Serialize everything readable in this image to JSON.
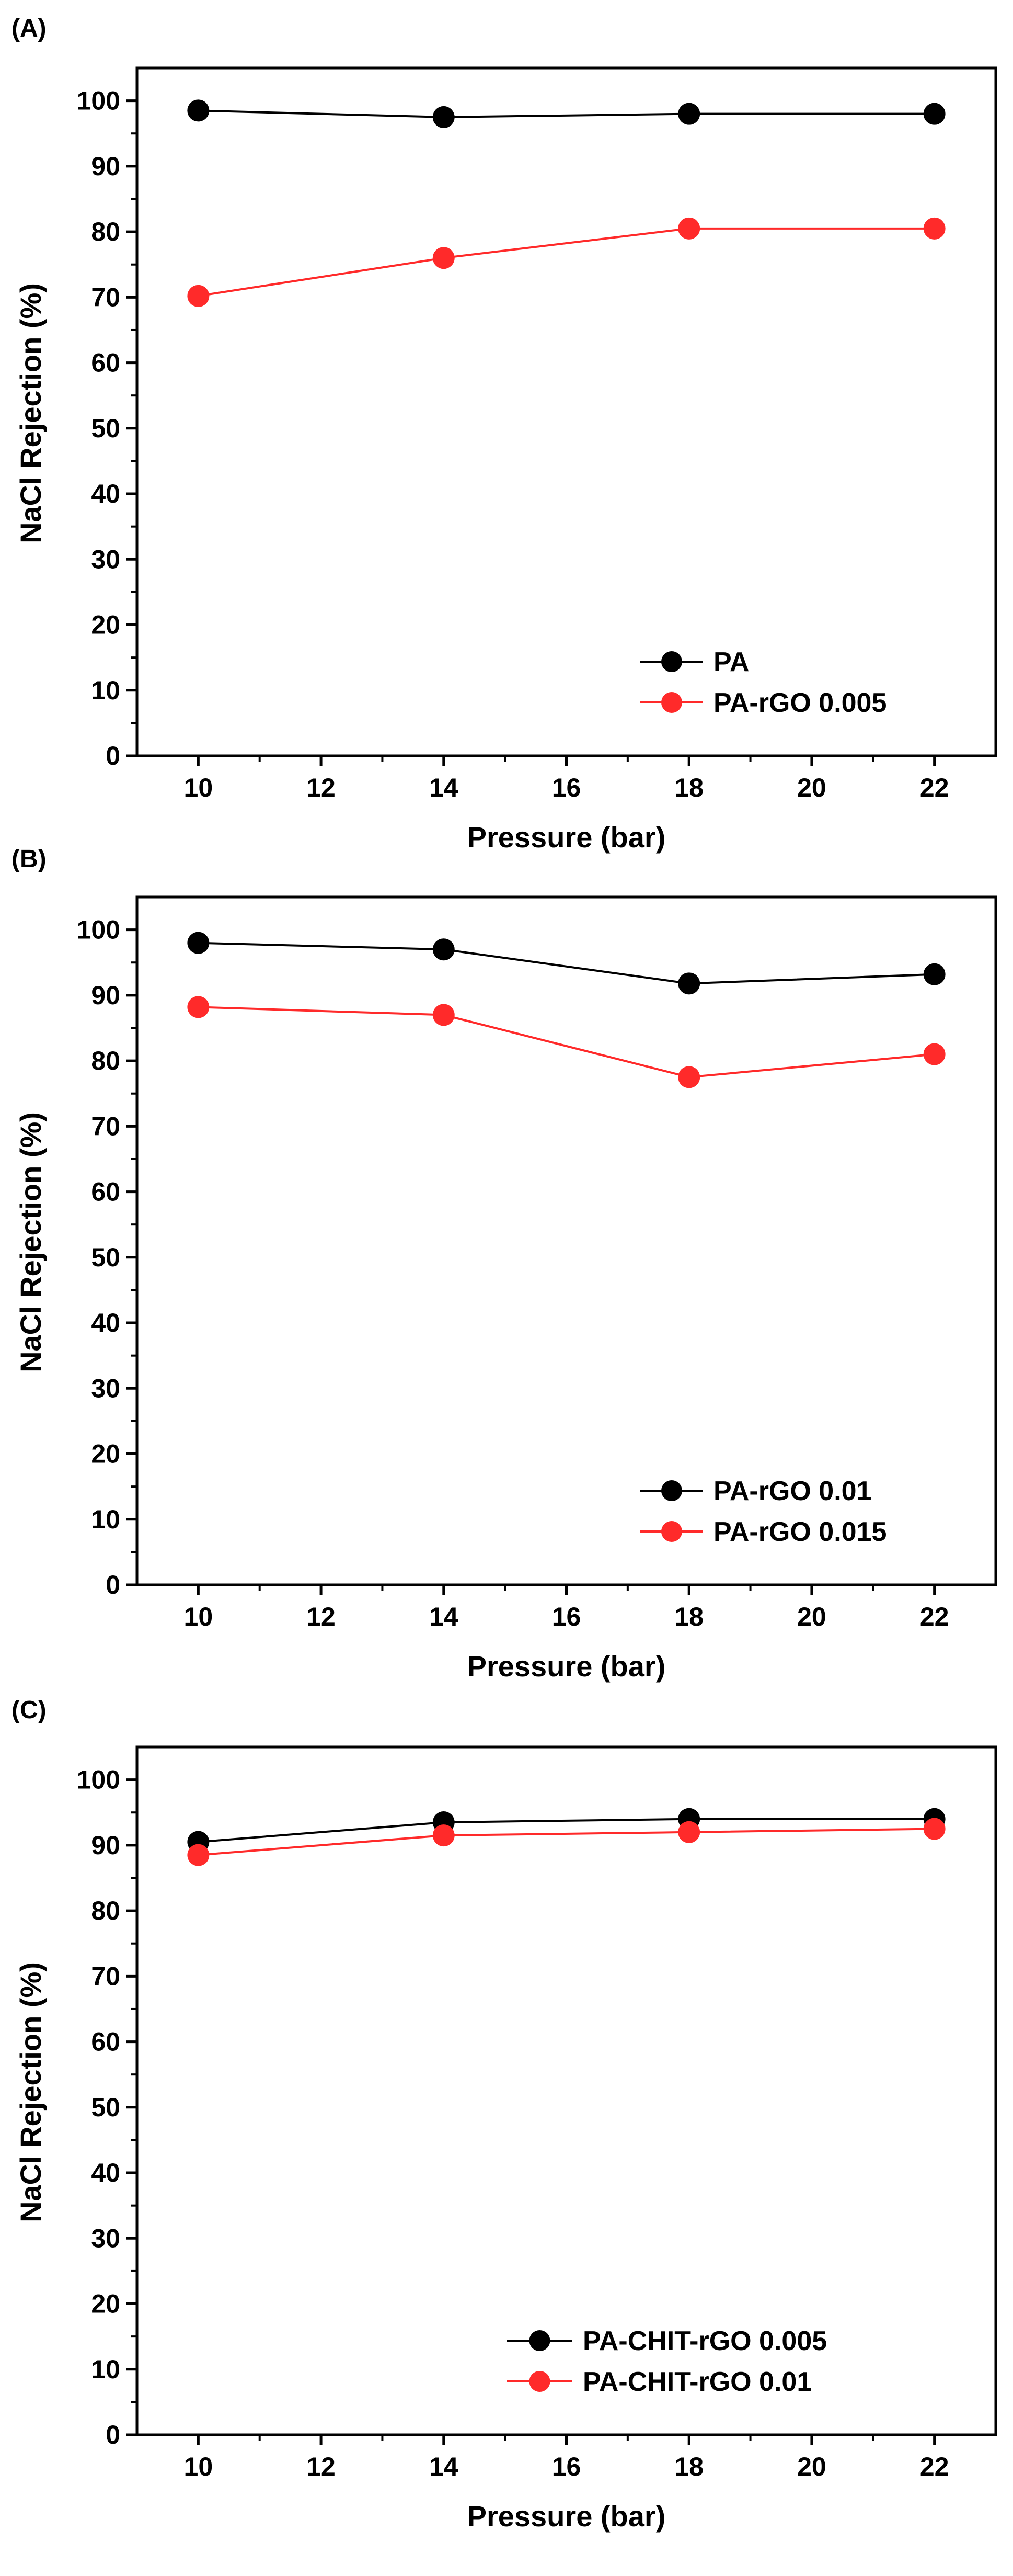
{
  "chart_data": [
    {
      "type": "line",
      "panel_label": "(A)",
      "title": "",
      "xlabel": "Pressure (bar)",
      "ylabel": "NaCl Rejection (%)",
      "xlim": [
        9,
        23
      ],
      "ylim": [
        0,
        105
      ],
      "xticks": [
        10,
        12,
        14,
        16,
        18,
        20,
        22
      ],
      "yticks": [
        0,
        10,
        20,
        30,
        40,
        50,
        60,
        70,
        80,
        90,
        100
      ],
      "x": [
        10,
        14,
        18,
        22
      ],
      "grid": false,
      "legend_position": "bottom-right",
      "series": [
        {
          "name": "PA",
          "color": "#000000",
          "values": [
            98.5,
            97.5,
            98,
            98
          ]
        },
        {
          "name": "PA-rGO 0.005",
          "color": "#ff2a2a",
          "values": [
            70.2,
            76,
            80.5,
            80.5
          ]
        }
      ]
    },
    {
      "type": "line",
      "panel_label": "(B)",
      "title": "",
      "xlabel": "Pressure (bar)",
      "ylabel": "NaCl Rejection (%)",
      "xlim": [
        9,
        23
      ],
      "ylim": [
        0,
        105
      ],
      "xticks": [
        10,
        12,
        14,
        16,
        18,
        20,
        22
      ],
      "yticks": [
        0,
        10,
        20,
        30,
        40,
        50,
        60,
        70,
        80,
        90,
        100
      ],
      "x": [
        10,
        14,
        18,
        22
      ],
      "grid": false,
      "legend_position": "bottom-right",
      "series": [
        {
          "name": "PA-rGO 0.01",
          "color": "#000000",
          "values": [
            98,
            97,
            91.8,
            93.2
          ]
        },
        {
          "name": "PA-rGO 0.015",
          "color": "#ff2a2a",
          "values": [
            88.2,
            87,
            77.5,
            81
          ]
        }
      ]
    },
    {
      "type": "line",
      "panel_label": "(C)",
      "title": "",
      "xlabel": "Pressure (bar)",
      "ylabel": "NaCl Rejection (%)",
      "xlim": [
        9,
        23
      ],
      "ylim": [
        0,
        105
      ],
      "xticks": [
        10,
        12,
        14,
        16,
        18,
        20,
        22
      ],
      "yticks": [
        0,
        10,
        20,
        30,
        40,
        50,
        60,
        70,
        80,
        90,
        100
      ],
      "x": [
        10,
        14,
        18,
        22
      ],
      "grid": false,
      "legend_position": "bottom-right",
      "series": [
        {
          "name": "PA-CHIT-rGO 0.005",
          "color": "#000000",
          "values": [
            90.5,
            93.5,
            94,
            94
          ]
        },
        {
          "name": "PA-CHIT-rGO 0.01",
          "color": "#ff2a2a",
          "values": [
            88.5,
            91.5,
            92,
            92.5
          ]
        }
      ]
    }
  ]
}
